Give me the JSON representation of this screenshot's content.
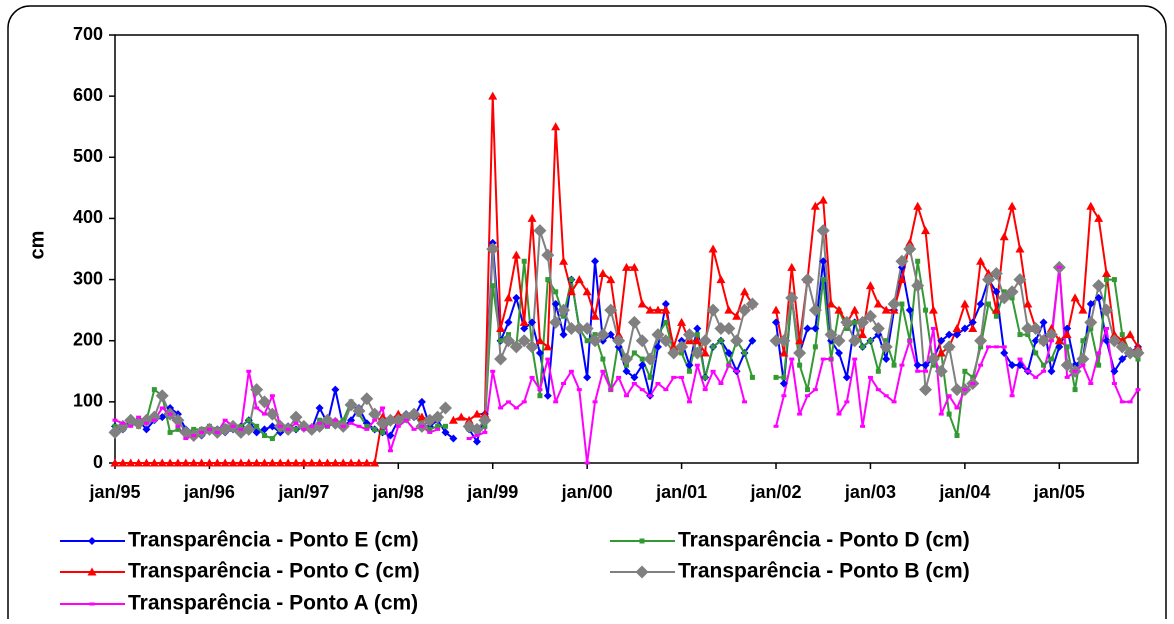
{
  "chart_data": {
    "type": "line",
    "y_label": "cm",
    "categories": [
      "jan/95",
      null,
      null,
      null,
      null,
      null,
      null,
      null,
      null,
      null,
      null,
      null,
      "jan/96",
      null,
      null,
      null,
      null,
      null,
      null,
      null,
      null,
      null,
      null,
      null,
      "jan/97",
      null,
      null,
      null,
      null,
      null,
      null,
      null,
      null,
      null,
      null,
      null,
      "jan/98",
      null,
      null,
      null,
      null,
      null,
      null,
      null,
      null,
      null,
      null,
      null,
      "jan/99",
      null,
      null,
      null,
      null,
      null,
      null,
      null,
      null,
      null,
      null,
      null,
      "jan/00",
      null,
      null,
      null,
      null,
      null,
      null,
      null,
      null,
      null,
      null,
      null,
      "jan/01",
      null,
      null,
      null,
      null,
      null,
      null,
      null,
      null,
      null,
      null,
      null,
      "jan/02",
      null,
      null,
      null,
      null,
      null,
      null,
      null,
      null,
      null,
      null,
      null,
      "jan/03",
      null,
      null,
      null,
      null,
      null,
      null,
      null,
      null,
      null,
      null,
      null,
      "jan/04",
      null,
      null,
      null,
      null,
      null,
      null,
      null,
      null,
      null,
      null,
      null,
      "jan/05",
      null,
      null,
      null,
      null,
      null,
      null,
      null,
      null,
      null,
      null
    ],
    "ylim": [
      0,
      700
    ],
    "yticks": [
      0,
      100,
      200,
      300,
      400,
      500,
      600,
      700
    ],
    "series": [
      {
        "name": "Transparência - Ponto E (cm)",
        "color": "#0000ff",
        "marker": "diamond",
        "values": [
          60,
          55,
          65,
          70,
          55,
          70,
          75,
          90,
          80,
          55,
          50,
          45,
          55,
          55,
          50,
          55,
          60,
          70,
          50,
          55,
          60,
          50,
          60,
          55,
          60,
          55,
          90,
          65,
          120,
          60,
          70,
          90,
          65,
          55,
          50,
          45,
          70,
          80,
          75,
          100,
          60,
          70,
          50,
          40,
          null,
          55,
          35,
          80,
          360,
          200,
          230,
          270,
          220,
          230,
          180,
          110,
          260,
          210,
          300,
          220,
          140,
          330,
          200,
          210,
          190,
          150,
          140,
          160,
          110,
          190,
          260,
          180,
          200,
          160,
          220,
          140,
          190,
          200,
          180,
          150,
          180,
          200,
          null,
          null,
          230,
          130,
          270,
          180,
          220,
          220,
          330,
          200,
          180,
          140,
          230,
          190,
          200,
          210,
          170,
          250,
          320,
          250,
          160,
          160,
          170,
          200,
          210,
          210,
          220,
          230,
          260,
          300,
          280,
          180,
          160,
          160,
          150,
          200,
          230,
          150,
          190,
          220,
          160,
          170,
          260,
          270,
          200,
          150,
          170,
          180,
          190
        ]
      },
      {
        "name": "Transparência - Ponto D (cm)",
        "color": "#339933",
        "marker": "square",
        "values": [
          60,
          55,
          65,
          60,
          70,
          120,
          110,
          50,
          55,
          50,
          55,
          55,
          60,
          55,
          60,
          55,
          60,
          70,
          60,
          45,
          40,
          55,
          60,
          55,
          60,
          55,
          70,
          60,
          65,
          70,
          100,
          80,
          60,
          55,
          50,
          70,
          75,
          70,
          80,
          65,
          55,
          60,
          60,
          null,
          null,
          55,
          50,
          60,
          290,
          200,
          210,
          190,
          330,
          190,
          110,
          300,
          280,
          240,
          300,
          220,
          200,
          210,
          170,
          120,
          200,
          160,
          180,
          170,
          140,
          210,
          230,
          180,
          180,
          150,
          210,
          140,
          190,
          200,
          160,
          200,
          180,
          140,
          null,
          null,
          140,
          140,
          270,
          160,
          120,
          190,
          300,
          170,
          250,
          220,
          230,
          190,
          200,
          150,
          200,
          160,
          260,
          200,
          330,
          250,
          160,
          180,
          80,
          45,
          150,
          140,
          190,
          260,
          240,
          280,
          270,
          210,
          210,
          180,
          160,
          170,
          200,
          190,
          120,
          200,
          220,
          160,
          300,
          300,
          210,
          180,
          170
        ]
      },
      {
        "name": "Transparência - Ponto C (cm)",
        "color": "#ff0000",
        "marker": "triangle",
        "values": [
          0,
          0,
          0,
          0,
          0,
          0,
          0,
          0,
          0,
          0,
          0,
          0,
          0,
          0,
          0,
          0,
          0,
          0,
          0,
          0,
          0,
          0,
          0,
          0,
          0,
          0,
          0,
          0,
          0,
          0,
          0,
          0,
          0,
          0,
          75,
          70,
          80,
          75,
          80,
          75,
          70,
          null,
          null,
          70,
          75,
          70,
          80,
          80,
          600,
          220,
          270,
          340,
          230,
          400,
          200,
          190,
          550,
          330,
          280,
          300,
          280,
          240,
          310,
          300,
          210,
          320,
          320,
          260,
          250,
          250,
          250,
          190,
          230,
          200,
          200,
          180,
          350,
          300,
          250,
          240,
          280,
          260,
          null,
          null,
          250,
          180,
          320,
          200,
          300,
          420,
          430,
          260,
          250,
          230,
          250,
          210,
          290,
          260,
          250,
          250,
          300,
          360,
          420,
          380,
          250,
          180,
          190,
          220,
          260,
          220,
          330,
          310,
          250,
          370,
          420,
          350,
          260,
          220,
          200,
          220,
          200,
          210,
          270,
          250,
          420,
          400,
          310,
          210,
          200,
          210,
          190
        ]
      },
      {
        "name": "Transparência - Ponto B (cm)",
        "color": "#808080",
        "marker": "big-diamond",
        "values": [
          50,
          60,
          70,
          65,
          70,
          75,
          110,
          80,
          70,
          50,
          45,
          50,
          55,
          50,
          55,
          60,
          50,
          55,
          120,
          100,
          80,
          60,
          55,
          75,
          60,
          55,
          60,
          70,
          65,
          60,
          95,
          85,
          105,
          80,
          65,
          70,
          70,
          75,
          80,
          60,
          70,
          75,
          90,
          null,
          null,
          60,
          55,
          70,
          350,
          170,
          200,
          190,
          200,
          190,
          380,
          340,
          230,
          250,
          220,
          220,
          220,
          200,
          210,
          250,
          200,
          170,
          230,
          200,
          170,
          210,
          200,
          180,
          190,
          210,
          180,
          200,
          250,
          220,
          220,
          200,
          250,
          260,
          null,
          null,
          200,
          200,
          270,
          180,
          300,
          250,
          380,
          210,
          200,
          230,
          200,
          230,
          240,
          220,
          190,
          260,
          330,
          350,
          290,
          120,
          170,
          150,
          190,
          120,
          120,
          130,
          200,
          300,
          310,
          270,
          280,
          300,
          220,
          220,
          200,
          210,
          320,
          160,
          150,
          170,
          230,
          290,
          250,
          200,
          190,
          180,
          180
        ]
      },
      {
        "name": "Transparência - Ponto A (cm)",
        "color": "#ff00ff",
        "marker": "small-square",
        "values": [
          70,
          65,
          60,
          75,
          65,
          70,
          90,
          80,
          60,
          40,
          45,
          50,
          55,
          50,
          70,
          60,
          55,
          150,
          90,
          80,
          110,
          60,
          55,
          65,
          55,
          60,
          65,
          60,
          70,
          60,
          65,
          60,
          55,
          70,
          90,
          20,
          60,
          70,
          55,
          60,
          50,
          55,
          null,
          null,
          null,
          40,
          45,
          50,
          150,
          90,
          100,
          90,
          100,
          140,
          120,
          170,
          100,
          130,
          150,
          120,
          0,
          100,
          150,
          120,
          140,
          110,
          130,
          120,
          110,
          130,
          120,
          140,
          140,
          100,
          160,
          120,
          150,
          130,
          160,
          150,
          100,
          null,
          null,
          null,
          60,
          110,
          170,
          80,
          110,
          120,
          170,
          170,
          80,
          100,
          170,
          60,
          140,
          120,
          110,
          100,
          160,
          200,
          150,
          150,
          220,
          80,
          110,
          90,
          120,
          130,
          160,
          190,
          190,
          190,
          110,
          170,
          150,
          140,
          150,
          200,
          320,
          140,
          150,
          160,
          130,
          180,
          220,
          130,
          100,
          100,
          120
        ]
      }
    ]
  }
}
